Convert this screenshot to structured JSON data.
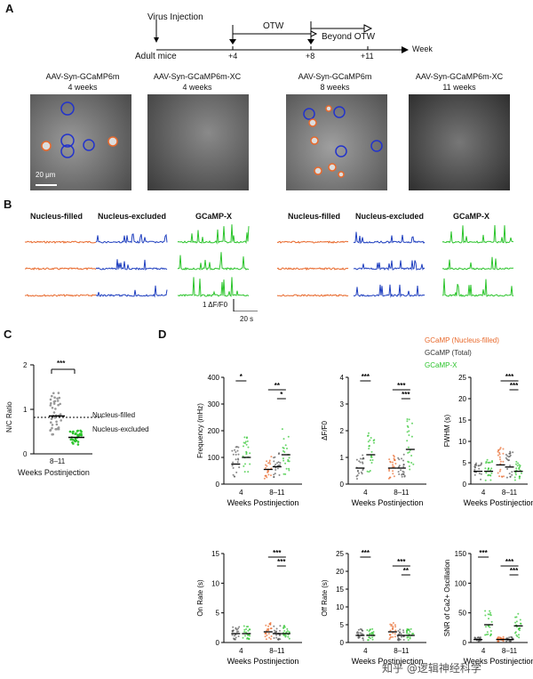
{
  "panels": {
    "a": "A",
    "b": "B",
    "c": "C",
    "d": "D"
  },
  "timeline": {
    "virus_injection": "Virus Injection",
    "adult_mice": "Adult mice",
    "ticks": [
      "+4",
      "+8",
      "+11"
    ],
    "otw": "OTW",
    "beyond_otw": "Beyond OTW",
    "week": "Week"
  },
  "images": [
    {
      "title": "AAV-Syn-GCaMP6m",
      "weeks": "4 weeks"
    },
    {
      "title": "AAV-Syn-GCaMP6m-XC",
      "weeks": "4 weeks"
    },
    {
      "title": "AAV-Syn-GCaMP6m",
      "weeks": "8 weeks"
    },
    {
      "title": "AAV-Syn-GCaMP6m-XC",
      "weeks": "11 weeks"
    }
  ],
  "scale_bar": "20 μm",
  "trace_headers": [
    "Nucleus-filled",
    "Nucleus-excluded",
    "GCaMP-X",
    "Nucleus-filled",
    "Nucleus-excluded",
    "GCaMP-X"
  ],
  "trace_scale": {
    "y": "1 ΔF/F0",
    "x": "20 s"
  },
  "colors": {
    "filled": "#e8692c",
    "excluded": "#1f3fbf",
    "gcampx": "#2cc42c",
    "total": "#333333",
    "sig": "#000000"
  },
  "chart_data": [
    {
      "type": "scatter",
      "panel": "C",
      "title": "",
      "ylabel": "N/C Ratio",
      "xlabel": "Weeks Postinjection",
      "categories": [
        "8–11"
      ],
      "ylim": [
        0,
        2
      ],
      "yticks": [
        0,
        1,
        2
      ],
      "series": [
        {
          "name": "Nucleus-filled",
          "mean": 0.85
        },
        {
          "name": "Nucleus-excluded",
          "mean": 0.37
        }
      ],
      "annotations": [
        "Nucleus-filled",
        "Nucleus-excluded"
      ],
      "threshold": 0.82,
      "significance": [
        "***"
      ]
    },
    {
      "type": "scatter",
      "panel": "D",
      "ylabel": "Frequency (mHz)",
      "xlabel": "Weeks Postinjection",
      "categories": [
        "4",
        "8–11"
      ],
      "ylim": [
        0,
        400
      ],
      "yticks": [
        0,
        100,
        200,
        300,
        400
      ],
      "series": [
        {
          "name": "GCaMP (Nucleus-filled)",
          "values": [
            null,
            55
          ]
        },
        {
          "name": "GCaMP (Total)",
          "values": [
            75,
            65
          ]
        },
        {
          "name": "GCaMP-X",
          "values": [
            100,
            110
          ]
        }
      ],
      "significance": [
        "*",
        "**",
        "*"
      ]
    },
    {
      "type": "scatter",
      "panel": "D",
      "ylabel": "ΔF/F0",
      "xlabel": "Weeks Postinjection",
      "categories": [
        "4",
        "8–11"
      ],
      "ylim": [
        0,
        4
      ],
      "yticks": [
        0,
        1,
        2,
        3,
        4
      ],
      "series": [
        {
          "name": "GCaMP (Nucleus-filled)",
          "values": [
            null,
            0.6
          ]
        },
        {
          "name": "GCaMP (Total)",
          "values": [
            0.6,
            0.6
          ]
        },
        {
          "name": "GCaMP-X",
          "values": [
            1.1,
            1.3
          ]
        }
      ],
      "significance": [
        "***",
        "***",
        "***"
      ]
    },
    {
      "type": "scatter",
      "panel": "D",
      "ylabel": "FWHM (s)",
      "xlabel": "Weeks Postinjection",
      "categories": [
        "4",
        "8–11"
      ],
      "ylim": [
        0,
        25
      ],
      "yticks": [
        0,
        5,
        10,
        15,
        20,
        25
      ],
      "series": [
        {
          "name": "GCaMP (Nucleus-filled)",
          "values": [
            null,
            4.5
          ]
        },
        {
          "name": "GCaMP (Total)",
          "values": [
            3,
            4
          ]
        },
        {
          "name": "GCaMP-X",
          "values": [
            3,
            3
          ]
        }
      ],
      "significance": [
        "***",
        "***"
      ]
    },
    {
      "type": "scatter",
      "panel": "D",
      "ylabel": "On Rate (s)",
      "xlabel": "Weeks Postinjection",
      "categories": [
        "4",
        "8–11"
      ],
      "ylim": [
        0,
        15
      ],
      "yticks": [
        0,
        5,
        10,
        15
      ],
      "series": [
        {
          "name": "GCaMP (Nucleus-filled)",
          "values": [
            null,
            1.8
          ]
        },
        {
          "name": "GCaMP (Total)",
          "values": [
            1.5,
            1.5
          ]
        },
        {
          "name": "GCaMP-X",
          "values": [
            1.5,
            1.5
          ]
        }
      ],
      "significance": [
        "***",
        "***"
      ]
    },
    {
      "type": "scatter",
      "panel": "D",
      "ylabel": "Off Rate (s)",
      "xlabel": "Weeks Postinjection",
      "categories": [
        "4",
        "8–11"
      ],
      "ylim": [
        0,
        25
      ],
      "yticks": [
        0,
        5,
        10,
        15,
        20,
        25
      ],
      "series": [
        {
          "name": "GCaMP (Nucleus-filled)",
          "values": [
            null,
            3
          ]
        },
        {
          "name": "GCaMP (Total)",
          "values": [
            2,
            2
          ]
        },
        {
          "name": "GCaMP-X",
          "values": [
            2,
            2
          ]
        }
      ],
      "significance": [
        "***",
        "***",
        "**"
      ]
    },
    {
      "type": "scatter",
      "panel": "D",
      "ylabel": "SNR of Ca2+ Oscillation",
      "xlabel": "Weeks Postinjection",
      "categories": [
        "4",
        "8–11"
      ],
      "ylim": [
        0,
        150
      ],
      "yticks": [
        0,
        50,
        100,
        150
      ],
      "series": [
        {
          "name": "GCaMP (Nucleus-filled)",
          "values": [
            null,
            5
          ]
        },
        {
          "name": "GCaMP (Total)",
          "values": [
            5,
            5
          ]
        },
        {
          "name": "GCaMP-X",
          "values": [
            30,
            28
          ]
        }
      ],
      "significance": [
        "***",
        "***",
        "***"
      ]
    }
  ],
  "legend": [
    "GCaMP (Nucleus-filled)",
    "GCaMP (Total)",
    "GCaMP-X"
  ],
  "watermark": "知乎 @逻辑神经科学"
}
